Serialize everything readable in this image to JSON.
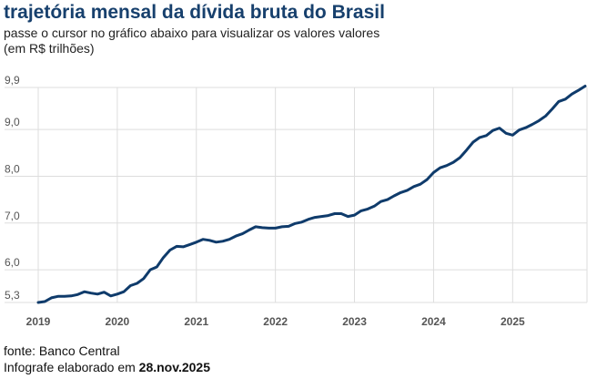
{
  "header": {
    "title": "trajetória mensal da dívida bruta do Brasil",
    "subtitle": "passe o cursor no gráfico abaixo para visualizar os valores valores (em R$ trilhões)"
  },
  "footer": {
    "source": "fonte: Banco Central",
    "credit_prefix": "Infografe elaborado em ",
    "credit_date": "28.nov.2025"
  },
  "colors": {
    "line": "#0f3b6b",
    "grid": "#dddddd",
    "axis": "#555555"
  },
  "chart_data": {
    "type": "line",
    "title": "trajetória mensal da dívida bruta do Brasil",
    "xlabel": "",
    "ylabel": "R$ trilhões",
    "ylim": [
      5.3,
      9.9
    ],
    "xlim": [
      2019.0,
      2025.917
    ],
    "y_ticks": [
      5.3,
      6.0,
      7.0,
      8.0,
      9.0,
      9.9
    ],
    "y_tick_labels": [
      "5,3",
      "6,0",
      "7,0",
      "8,0",
      "9,0",
      "9,9"
    ],
    "x_ticks": [
      2019,
      2020,
      2021,
      2022,
      2023,
      2024,
      2025
    ],
    "x_tick_labels": [
      "2019",
      "2020",
      "2021",
      "2022",
      "2023",
      "2024",
      "2025"
    ],
    "grid": true,
    "series": [
      {
        "name": "Dívida bruta",
        "x": [
          2019.0,
          2019.083,
          2019.167,
          2019.25,
          2019.333,
          2019.417,
          2019.5,
          2019.583,
          2019.667,
          2019.75,
          2019.833,
          2019.917,
          2020.0,
          2020.083,
          2020.167,
          2020.25,
          2020.333,
          2020.417,
          2020.5,
          2020.583,
          2020.667,
          2020.75,
          2020.833,
          2020.917,
          2021.0,
          2021.083,
          2021.167,
          2021.25,
          2021.333,
          2021.417,
          2021.5,
          2021.583,
          2021.667,
          2021.75,
          2021.833,
          2021.917,
          2022.0,
          2022.083,
          2022.167,
          2022.25,
          2022.333,
          2022.417,
          2022.5,
          2022.583,
          2022.667,
          2022.75,
          2022.833,
          2022.917,
          2023.0,
          2023.083,
          2023.167,
          2023.25,
          2023.333,
          2023.417,
          2023.5,
          2023.583,
          2023.667,
          2023.75,
          2023.833,
          2023.917,
          2024.0,
          2024.083,
          2024.167,
          2024.25,
          2024.333,
          2024.417,
          2024.5,
          2024.583,
          2024.667,
          2024.75,
          2024.833,
          2024.917,
          2025.0,
          2025.083,
          2025.167,
          2025.25,
          2025.333,
          2025.417,
          2025.5,
          2025.583,
          2025.667,
          2025.75,
          2025.833,
          2025.917
        ],
        "values": [
          5.3,
          5.32,
          5.4,
          5.43,
          5.43,
          5.44,
          5.47,
          5.53,
          5.5,
          5.48,
          5.52,
          5.44,
          5.48,
          5.53,
          5.66,
          5.71,
          5.81,
          6.0,
          6.06,
          6.26,
          6.42,
          6.5,
          6.49,
          6.54,
          6.59,
          6.65,
          6.63,
          6.59,
          6.61,
          6.65,
          6.72,
          6.77,
          6.85,
          6.92,
          6.9,
          6.89,
          6.89,
          6.92,
          6.93,
          6.99,
          7.02,
          7.08,
          7.12,
          7.14,
          7.16,
          7.2,
          7.2,
          7.14,
          7.17,
          7.26,
          7.3,
          7.36,
          7.46,
          7.5,
          7.58,
          7.65,
          7.7,
          7.78,
          7.83,
          7.93,
          8.08,
          8.18,
          8.23,
          8.3,
          8.4,
          8.56,
          8.73,
          8.83,
          8.87,
          8.98,
          9.03,
          8.92,
          8.88,
          8.99,
          9.04,
          9.11,
          9.19,
          9.29,
          9.44,
          9.6,
          9.65,
          9.76,
          9.84,
          9.93
        ]
      }
    ]
  }
}
